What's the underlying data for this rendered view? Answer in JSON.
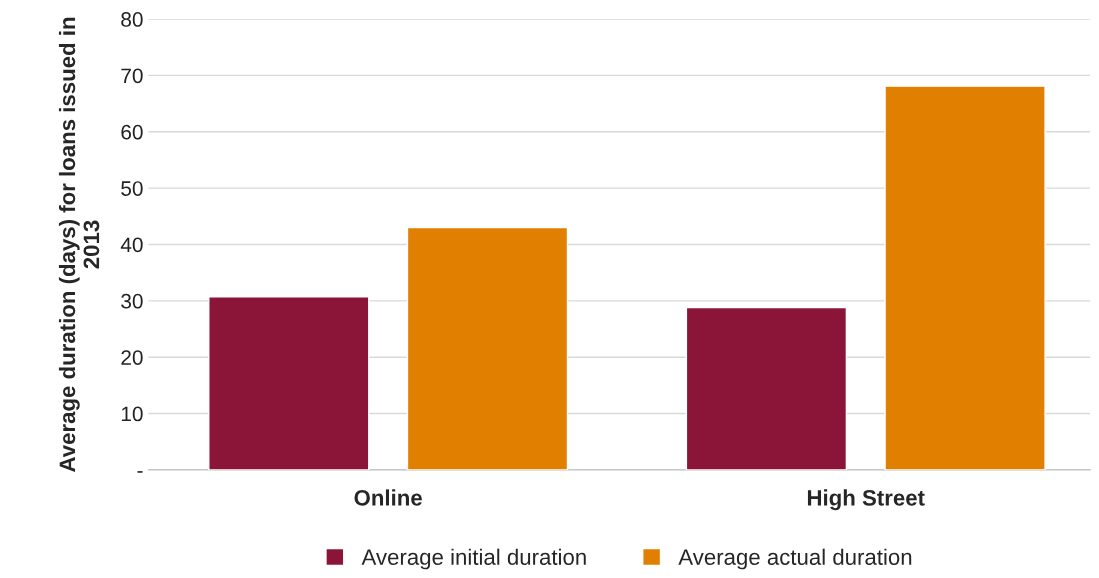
{
  "chart_data": {
    "type": "bar",
    "ylabel": "Average duration (days) for loans issued in 2013",
    "categories": [
      "Online",
      "High Street"
    ],
    "series": [
      {
        "name": "Average initial duration",
        "color": "#8b1538",
        "values": [
          30.7,
          28.8
        ]
      },
      {
        "name": "Average actual duration",
        "color": "#e07f00",
        "values": [
          43,
          68.1
        ]
      }
    ],
    "ylim": [
      0,
      80
    ],
    "yticks": [
      {
        "value": 0,
        "label": "-"
      },
      10,
      20,
      30,
      40,
      50,
      60,
      70,
      80
    ],
    "grid": "y",
    "legend": "bottom"
  }
}
